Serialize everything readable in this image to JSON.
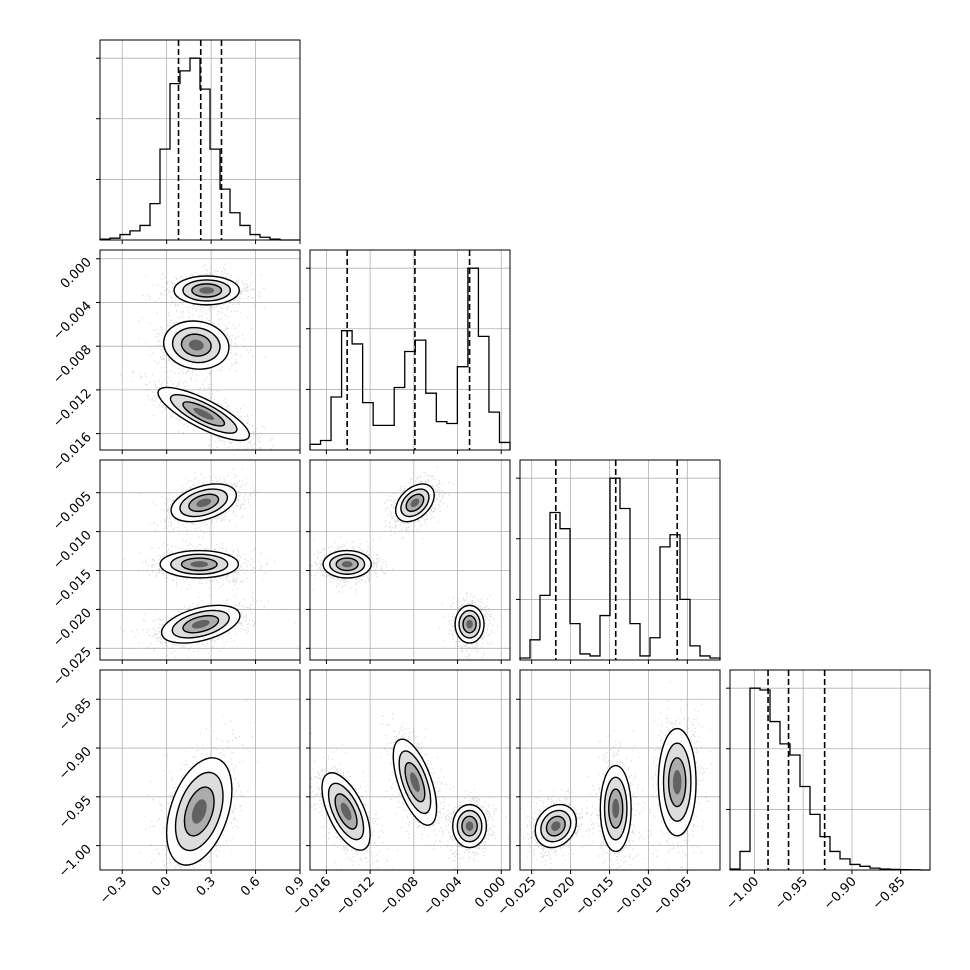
{
  "chart_data": {
    "type": "corner",
    "title": "",
    "xlabel": "",
    "ylabel": "",
    "grid": true,
    "colors": {
      "samples": "#000000",
      "quantile_line": "#000000",
      "grid": "#b0b0b0"
    },
    "parameters": [
      {
        "range": [
          -0.45,
          0.9
        ],
        "ticks": [
          -0.3,
          0.0,
          0.3,
          0.6,
          0.9
        ],
        "tick_labels": [
          "−0.3",
          "0.0",
          "0.3",
          "0.6",
          "0.9"
        ],
        "quantiles": [
          0.08,
          0.23,
          0.37
        ],
        "modes": [
          {
            "mean": 0.23,
            "sd": 0.1,
            "weight": 1
          }
        ],
        "histogram": [
          0.005,
          0.01,
          0.03,
          0.05,
          0.08,
          0.2,
          0.5,
          0.86,
          0.93,
          1.0,
          0.83,
          0.5,
          0.28,
          0.15,
          0.08,
          0.03,
          0.015,
          0.005,
          0.0,
          0.0
        ]
      },
      {
        "range": [
          -0.0175,
          0.0008
        ],
        "ticks": [
          -0.016,
          -0.012,
          -0.008,
          -0.004,
          0.0
        ],
        "tick_labels": [
          "−0.016",
          "−0.012",
          "−0.008",
          "−0.004",
          "0.000"
        ],
        "quantiles": [
          -0.0141,
          -0.0079,
          -0.0029
        ],
        "modes": [
          {
            "mean": -0.0142,
            "sd": 0.0011,
            "weight": 1
          },
          {
            "mean": -0.0079,
            "sd": 0.001,
            "weight": 1
          },
          {
            "mean": -0.003,
            "sd": 0.0006,
            "weight": 1
          }
        ],
        "histogram": [
          0.03,
          0.05,
          0.28,
          0.63,
          0.56,
          0.25,
          0.13,
          0.13,
          0.33,
          0.52,
          0.58,
          0.3,
          0.15,
          0.14,
          0.44,
          0.96,
          0.6,
          0.2,
          0.04
        ]
      },
      {
        "range": [
          -0.0265,
          -0.0008
        ],
        "ticks": [
          -0.025,
          -0.02,
          -0.015,
          -0.01,
          -0.005
        ],
        "tick_labels": [
          "−0.025",
          "−0.020",
          "−0.015",
          "−0.010",
          "−0.005"
        ],
        "quantiles": [
          -0.0219,
          -0.0142,
          -0.0063
        ],
        "modes": [
          {
            "mean": -0.0219,
            "sd": 0.0011,
            "weight": 1
          },
          {
            "mean": -0.0142,
            "sd": 0.0011,
            "weight": 1
          },
          {
            "mean": -0.0063,
            "sd": 0.0011,
            "weight": 1
          }
        ],
        "histogram": [
          0.01,
          0.1,
          0.32,
          0.73,
          0.65,
          0.18,
          0.03,
          0.02,
          0.22,
          0.9,
          0.75,
          0.18,
          0.02,
          0.11,
          0.56,
          0.62,
          0.3,
          0.07,
          0.02,
          0.01
        ]
      },
      {
        "range": [
          -1.025,
          -0.82
        ],
        "ticks": [
          -1.0,
          -0.95,
          -0.9,
          -0.85
        ],
        "tick_labels": [
          "−1.00",
          "−0.95",
          "−0.90",
          "−0.85"
        ],
        "quantiles": [
          -0.986,
          -0.965,
          -0.928
        ],
        "histogram": [
          0.005,
          0.1,
          0.98,
          0.97,
          0.8,
          0.68,
          0.62,
          0.45,
          0.3,
          0.18,
          0.1,
          0.06,
          0.03,
          0.02,
          0.01,
          0.005,
          0.003,
          0.002,
          0.001,
          0.0
        ]
      }
    ],
    "pairs": [
      {
        "row": 1,
        "col": 0,
        "clusters": [
          {
            "mean": [
              0.27,
              -0.0029
            ],
            "sd": [
              0.1,
              0.0006
            ],
            "corr": 0.0
          },
          {
            "mean": [
              0.2,
              -0.0079
            ],
            "sd": [
              0.1,
              0.001
            ],
            "corr": -0.1
          },
          {
            "mean": [
              0.25,
              -0.0142
            ],
            "sd": [
              0.14,
              0.0011
            ],
            "corr": -0.8
          }
        ]
      },
      {
        "row": 2,
        "col": 0,
        "clusters": [
          {
            "mean": [
              0.25,
              -0.0063
            ],
            "sd": [
              0.1,
              0.0011
            ],
            "corr": 0.4
          },
          {
            "mean": [
              0.22,
              -0.0142
            ],
            "sd": [
              0.12,
              0.0008
            ],
            "corr": 0.0
          },
          {
            "mean": [
              0.23,
              -0.0219
            ],
            "sd": [
              0.12,
              0.0011
            ],
            "corr": 0.45
          }
        ]
      },
      {
        "row": 3,
        "col": 0,
        "clusters": [
          {
            "mean": [
              0.22,
              -0.965
            ],
            "sd": [
              0.1,
              0.025
            ],
            "corr": 0.4
          }
        ]
      },
      {
        "row": 2,
        "col": 1,
        "clusters": [
          {
            "mean": [
              -0.0141,
              -0.0142
            ],
            "sd": [
              0.001,
              0.0008
            ],
            "corr": 0.0
          },
          {
            "mean": [
              -0.0079,
              -0.0063
            ],
            "sd": [
              0.0008,
              0.0011
            ],
            "corr": 0.4
          },
          {
            "mean": [
              -0.0029,
              -0.0219
            ],
            "sd": [
              0.0006,
              0.0011
            ],
            "corr": 0.0
          }
        ]
      },
      {
        "row": 3,
        "col": 1,
        "clusters": [
          {
            "mean": [
              -0.0142,
              -0.965
            ],
            "sd": [
              0.001,
              0.018
            ],
            "corr": -0.6
          },
          {
            "mean": [
              -0.0079,
              -0.935
            ],
            "sd": [
              0.0009,
              0.02
            ],
            "corr": -0.6
          },
          {
            "mean": [
              -0.0029,
              -0.98
            ],
            "sd": [
              0.0007,
              0.01
            ],
            "corr": 0.0
          }
        ]
      },
      {
        "row": 3,
        "col": 2,
        "clusters": [
          {
            "mean": [
              -0.0219,
              -0.98
            ],
            "sd": [
              0.0012,
              0.01
            ],
            "corr": 0.2
          },
          {
            "mean": [
              -0.0142,
              -0.962
            ],
            "sd": [
              0.0009,
              0.02
            ],
            "corr": 0.0
          },
          {
            "mean": [
              -0.0063,
              -0.935
            ],
            "sd": [
              0.0011,
              0.025
            ],
            "corr": 0.0
          }
        ]
      }
    ]
  }
}
